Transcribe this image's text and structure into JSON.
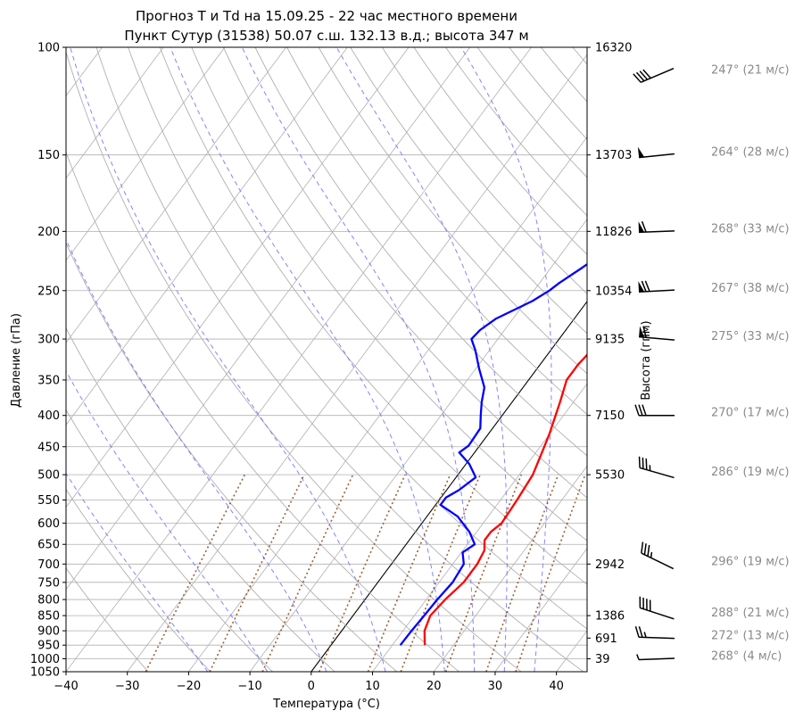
{
  "chart_data": {
    "type": "line",
    "title_line1": "Прогноз T и Td на 15.09.25 - 22 час местного времени",
    "title_line2": "Пункт Сутур (31538) 50.07 с.ш. 132.13 в.д.; высота 347 м",
    "xlabel": "Температура (°C)",
    "ylabel": "Давление (гПа)",
    "ylabel_right": "Высота (гпм)",
    "xlim": [
      -40,
      45
    ],
    "ylim": [
      1050,
      100
    ],
    "y_scale": "log",
    "grid": true,
    "x_ticks": [
      -40,
      -30,
      -20,
      -10,
      0,
      10,
      20,
      30,
      40
    ],
    "pressure_ticks": [
      100,
      150,
      200,
      250,
      300,
      350,
      400,
      450,
      500,
      550,
      600,
      650,
      700,
      750,
      800,
      850,
      900,
      950,
      1000,
      1050
    ],
    "height_ticks": [
      {
        "p": 100,
        "label": "16320"
      },
      {
        "p": 150,
        "label": "13703"
      },
      {
        "p": 200,
        "label": "11826"
      },
      {
        "p": 250,
        "label": "10354"
      },
      {
        "p": 300,
        "label": "9135"
      },
      {
        "p": 400,
        "label": "7150"
      },
      {
        "p": 500,
        "label": "5530"
      },
      {
        "p": 700,
        "label": "2942"
      },
      {
        "p": 850,
        "label": "1386"
      },
      {
        "p": 925,
        "label": "691"
      },
      {
        "p": 1000,
        "label": "39"
      }
    ],
    "series": [
      {
        "name": "",
        "kind": "temperature",
        "color": "#ff0000",
        "points": [
          [
            15.3,
            950
          ],
          [
            13.5,
            900
          ],
          [
            12.6,
            850
          ],
          [
            13.1,
            800
          ],
          [
            14.0,
            750
          ],
          [
            14.0,
            700
          ],
          [
            13.5,
            665
          ],
          [
            12.3,
            640
          ],
          [
            12.3,
            620
          ],
          [
            13.0,
            600
          ],
          [
            12.7,
            550
          ],
          [
            12.2,
            500
          ],
          [
            11.0,
            460
          ],
          [
            10.0,
            430
          ],
          [
            7.8,
            380
          ],
          [
            6.2,
            350
          ],
          [
            6.2,
            330
          ],
          [
            6.6,
            315
          ],
          [
            8.0,
            300
          ],
          [
            9.6,
            285
          ],
          [
            11.2,
            272
          ],
          [
            13.2,
            260
          ],
          [
            15.7,
            250
          ],
          [
            17.1,
            240
          ],
          [
            19.1,
            225
          ],
          [
            20.2,
            215
          ],
          [
            22.5,
            208
          ],
          [
            24.9,
            200
          ],
          [
            28.0,
            190
          ],
          [
            31.5,
            180
          ],
          [
            35.0,
            163
          ],
          [
            37.0,
            153
          ],
          [
            40.0,
            140
          ],
          [
            43.0,
            127
          ],
          [
            46.0,
            116
          ],
          [
            48.8,
            110
          ],
          [
            52.5,
            100
          ]
        ]
      },
      {
        "name": "",
        "kind": "dewpoint",
        "color": "#0000ff",
        "points": [
          [
            11.3,
            950
          ],
          [
            11.4,
            900
          ],
          [
            11.6,
            850
          ],
          [
            11.8,
            800
          ],
          [
            12.2,
            750
          ],
          [
            11.8,
            700
          ],
          [
            10.2,
            670
          ],
          [
            11.2,
            650
          ],
          [
            8.8,
            620
          ],
          [
            5.0,
            585
          ],
          [
            0.8,
            560
          ],
          [
            0.8,
            545
          ],
          [
            2.0,
            530
          ],
          [
            3.2,
            505
          ],
          [
            0.5,
            480
          ],
          [
            -2.5,
            460
          ],
          [
            -1.8,
            448
          ],
          [
            -2.0,
            420
          ],
          [
            -3.5,
            400
          ],
          [
            -5.0,
            380
          ],
          [
            -6.3,
            360
          ],
          [
            -9.5,
            335
          ],
          [
            -12.3,
            313
          ],
          [
            -14.3,
            300
          ],
          [
            -14.0,
            290
          ],
          [
            -12.8,
            278
          ],
          [
            -10.5,
            267
          ],
          [
            -9.0,
            260
          ],
          [
            -7.5,
            250
          ],
          [
            -6.8,
            243
          ],
          [
            -5.0,
            230
          ],
          [
            -3.0,
            215
          ],
          [
            -1.2,
            203
          ],
          [
            0.8,
            195
          ],
          [
            3.0,
            186
          ],
          [
            6.5,
            175
          ],
          [
            11.0,
            161
          ],
          [
            16.0,
            143
          ],
          [
            21.0,
            126
          ],
          [
            26.0,
            110
          ],
          [
            28.0,
            105
          ],
          [
            30.0,
            100
          ]
        ]
      }
    ],
    "wind": [
      {
        "p": 110,
        "dir": 247,
        "speed": 21,
        "label": "247° (21 м/с)"
      },
      {
        "p": 150,
        "dir": 264,
        "speed": 28,
        "label": "264° (28 м/с)"
      },
      {
        "p": 200,
        "dir": 268,
        "speed": 33,
        "label": "268° (33 м/с)"
      },
      {
        "p": 250,
        "dir": 267,
        "speed": 38,
        "label": "267° (38 м/с)"
      },
      {
        "p": 300,
        "dir": 275,
        "speed": 33,
        "label": "275° (33 м/с)"
      },
      {
        "p": 400,
        "dir": 270,
        "speed": 17,
        "label": "270° (17 м/с)"
      },
      {
        "p": 500,
        "dir": 286,
        "speed": 19,
        "label": "286° (19 м/с)"
      },
      {
        "p": 700,
        "dir": 296,
        "speed": 19,
        "label": "296° (19 м/с)"
      },
      {
        "p": 850,
        "dir": 288,
        "speed": 21,
        "label": "288° (21 м/с)"
      },
      {
        "p": 925,
        "dir": 272,
        "speed": 13,
        "label": "272° (13 м/с)"
      },
      {
        "p": 1000,
        "dir": 268,
        "speed": 4,
        "label": "268° (4 м/с)"
      }
    ],
    "colors": {
      "temperature": "#ff0000",
      "dewpoint": "#0000ff",
      "dry_adiabat": "#b0b0b0",
      "moist_adiabat": "#6f6fff",
      "mixing_ratio": "#8b4513",
      "zero_isotherm": "#000000",
      "wind_label": "#8a8a8a",
      "grid": "#b0b0b0"
    }
  }
}
